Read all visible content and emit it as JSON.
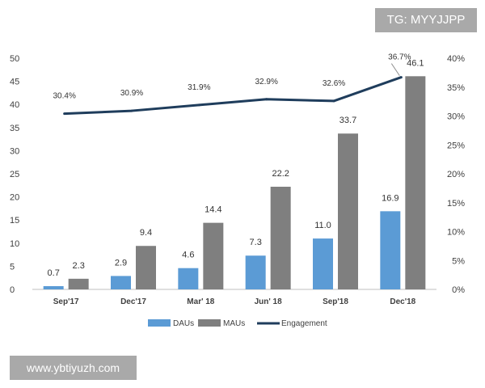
{
  "watermarks": {
    "top": "TG: MYYJJPP",
    "bottom": "www.ybtiyuzh.com"
  },
  "chart_data": {
    "type": "bar",
    "categories": [
      "Sep'17",
      "Dec'17",
      "Mar' 18",
      "Jun' 18",
      "Sep'18",
      "Dec'18"
    ],
    "series": [
      {
        "name": "DAUs",
        "type": "bar",
        "axis": "left",
        "color": "#5b9bd5",
        "values": [
          0.7,
          2.9,
          4.6,
          7.3,
          11.0,
          16.9
        ],
        "labels": [
          "0.7",
          "2.9",
          "4.6",
          "7.3",
          "11.0",
          "16.9"
        ]
      },
      {
        "name": "MAUs",
        "type": "bar",
        "axis": "left",
        "color": "#7f7f7f",
        "values": [
          2.3,
          9.4,
          14.4,
          22.2,
          33.7,
          46.1
        ],
        "labels": [
          "2.3",
          "9.4",
          "14.4",
          "22.2",
          "33.7",
          "46.1"
        ]
      },
      {
        "name": "Engagement",
        "type": "line",
        "axis": "right",
        "color": "#1f3d5c",
        "values": [
          30.4,
          30.9,
          31.9,
          32.9,
          32.6,
          36.7
        ],
        "labels": [
          "30.4%",
          "30.9%",
          "31.9%",
          "32.9%",
          "32.6%",
          "36.7%"
        ]
      }
    ],
    "y_left": {
      "ylim": [
        0,
        50
      ],
      "ticks": [
        "0",
        "5",
        "10",
        "15",
        "20",
        "25",
        "30",
        "35",
        "40",
        "45",
        "50"
      ]
    },
    "y_right": {
      "ylim": [
        0,
        40
      ],
      "ticks": [
        "0%",
        "5%",
        "10%",
        "15%",
        "20%",
        "25%",
        "30%",
        "35%",
        "40%"
      ]
    },
    "legend": {
      "position": "bottom",
      "entries": [
        "DAUs",
        "MAUs",
        "Engagement"
      ]
    },
    "grid": false
  }
}
